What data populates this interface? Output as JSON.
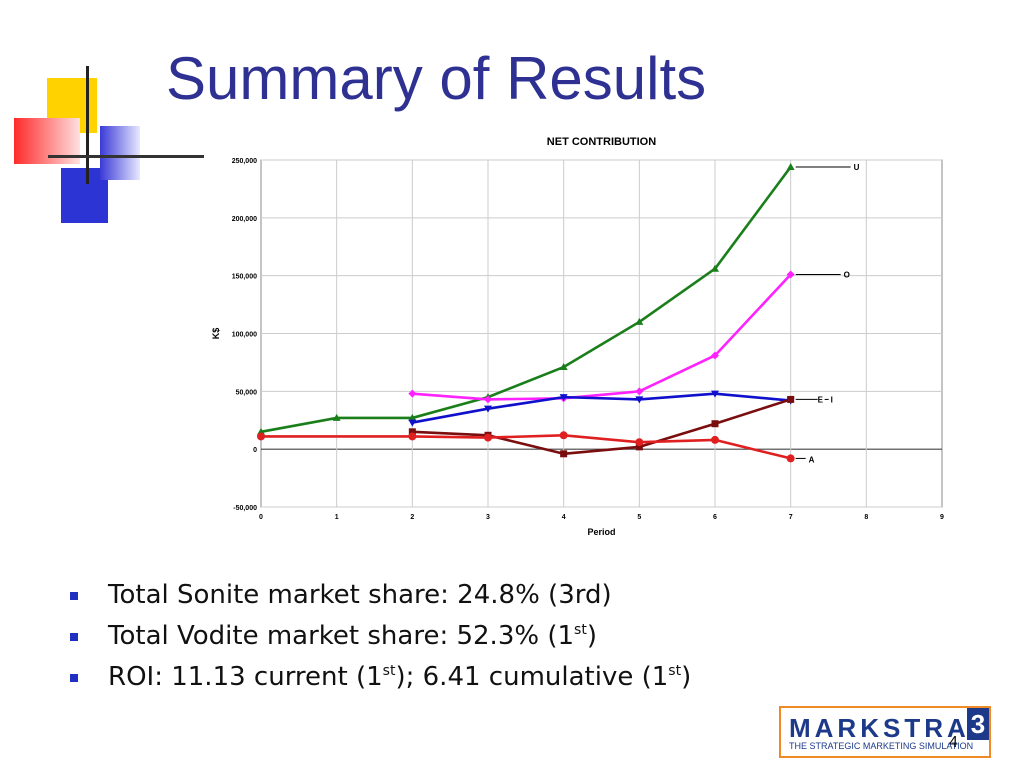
{
  "slide": {
    "title": "Summary of Results",
    "page_number": "4"
  },
  "bullets": [
    {
      "text": "Total Sonite market share: 24.8% (3rd)",
      "sup": "",
      "tail": "",
      "sup2": "",
      "tail2": ""
    },
    {
      "text": "Total Vodite market share: 52.3% (1",
      "sup": "st",
      "tail": ")",
      "sup2": "",
      "tail2": ""
    },
    {
      "text": "ROI: 11.13 current (1",
      "sup": "st",
      "tail": "); 6.41 cumulative (1",
      "sup2": "st",
      "tail2": ")"
    }
  ],
  "logo": {
    "main": "MARKSTRAT",
    "number": "3",
    "subtitle": "THE STRATEGIC MARKETING SIMULATION"
  },
  "colors": {
    "title": "#2e3192",
    "bullet": "#1f2fbf",
    "logo_blue": "#1d3a8a",
    "logo_orange": "#f08a24"
  },
  "chart_data": {
    "type": "line",
    "title": "NET CONTRIBUTION",
    "xlabel": "Period",
    "ylabel": "K$",
    "xlim": [
      0,
      9
    ],
    "ylim": [
      -50000,
      250000
    ],
    "x_ticks": [
      "0",
      "1",
      "2",
      "3",
      "4",
      "5",
      "6",
      "7",
      "8",
      "9"
    ],
    "y_ticks": [
      "-50,000",
      "0",
      "50,000",
      "100,000",
      "150,000",
      "200,000",
      "250,000"
    ],
    "grid": true,
    "legend": "direct labels at line ends",
    "series": [
      {
        "name": "U",
        "color": "#1a7f1a",
        "marker": "triangle",
        "points": [
          [
            0,
            15000
          ],
          [
            1,
            27000
          ],
          [
            2,
            27000
          ],
          [
            3,
            45000
          ],
          [
            4,
            71000
          ],
          [
            5,
            110000
          ],
          [
            6,
            156000
          ],
          [
            7,
            244000
          ]
        ]
      },
      {
        "name": "O",
        "color": "#ff22ff",
        "marker": "diamond",
        "points": [
          [
            2,
            48000
          ],
          [
            3,
            43000
          ],
          [
            4,
            44000
          ],
          [
            5,
            50000
          ],
          [
            6,
            81000
          ],
          [
            7,
            151000
          ]
        ]
      },
      {
        "name": "I",
        "color": "#1010cc",
        "marker": "triangle-down",
        "points": [
          [
            2,
            23000
          ],
          [
            3,
            35000
          ],
          [
            4,
            45000
          ],
          [
            5,
            43000
          ],
          [
            6,
            48000
          ],
          [
            7,
            42000
          ]
        ]
      },
      {
        "name": "E",
        "color": "#7a0d0d",
        "marker": "square",
        "points": [
          [
            2,
            15000
          ],
          [
            3,
            12000
          ],
          [
            4,
            -4000
          ],
          [
            5,
            2000
          ],
          [
            6,
            22000
          ],
          [
            7,
            43000
          ]
        ]
      },
      {
        "name": "A",
        "color": "#e02020",
        "marker": "circle",
        "points": [
          [
            0,
            11000
          ],
          [
            2,
            11000
          ],
          [
            3,
            10000
          ],
          [
            4,
            12000
          ],
          [
            5,
            6000
          ],
          [
            6,
            8000
          ],
          [
            7,
            -8000
          ]
        ]
      }
    ]
  }
}
